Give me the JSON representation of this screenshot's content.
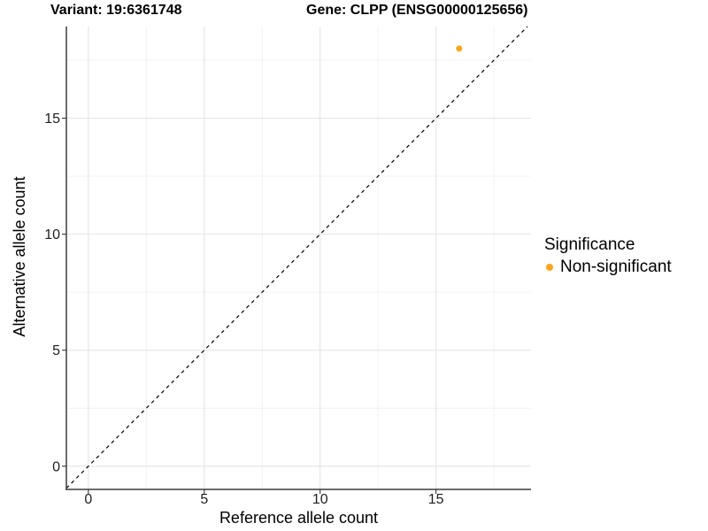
{
  "header": {
    "variant_title": "Variant: 19:6361748",
    "gene_title": "Gene: CLPP (ENSG00000125656)"
  },
  "chart_data": {
    "type": "scatter",
    "title": "",
    "xlabel": "Reference allele count",
    "ylabel": "Alternative allele count",
    "xlim": [
      -0.95,
      19.1
    ],
    "ylim": [
      -1.0,
      18.95
    ],
    "x_ticks": [
      0,
      5,
      10,
      15
    ],
    "y_ticks": [
      0,
      5,
      10,
      15
    ],
    "x_minor_ticks": [
      2.5,
      7.5,
      12.5,
      17.5
    ],
    "y_minor_ticks": [
      2.5,
      7.5,
      12.5,
      17.5
    ],
    "grid": true,
    "series": [
      {
        "name": "Non-significant",
        "color": "#FFA520",
        "points": [
          {
            "x": 16,
            "y": 18
          }
        ]
      }
    ],
    "identity_line": {
      "slope": 1,
      "intercept": 0,
      "style": "dashed",
      "color": "#000000"
    },
    "legend": {
      "title": "Significance",
      "position": "right",
      "entries": [
        {
          "label": "Non-significant",
          "color": "#FFA520"
        }
      ]
    }
  },
  "style": {
    "background": "#FFFFFF",
    "axis_line_color": "#3C3C3C",
    "tick_color": "#333333",
    "tick_label_color": "#1F1F1F",
    "grid_major_color": "#E4E4E4",
    "grid_minor_color": "#F1F1F1",
    "point_color": "#FFA520"
  }
}
